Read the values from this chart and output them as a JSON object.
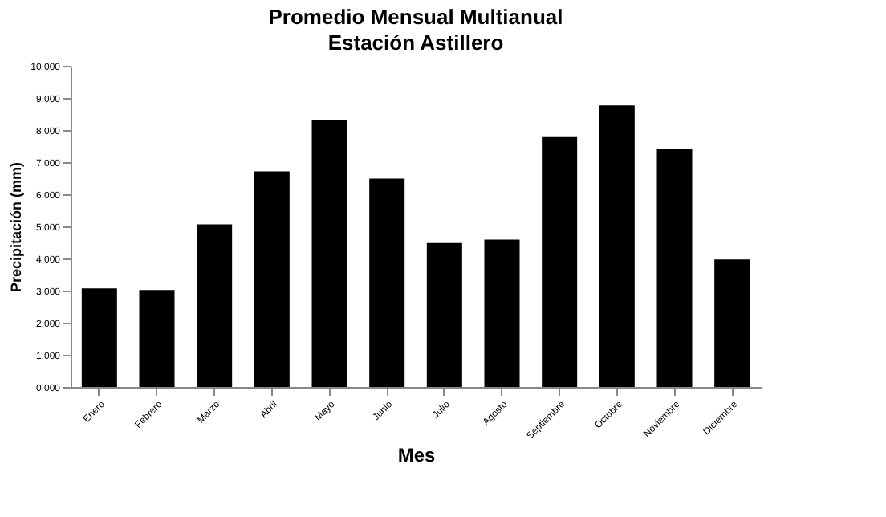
{
  "chart_data": {
    "type": "bar",
    "title": "Promedio Mensual Multianual",
    "subtitle": "Estación Astillero",
    "xlabel": "Mes",
    "ylabel": "Precipitación (mm)",
    "categories": [
      "Enero",
      "Febrero",
      "Marzo",
      "Abril",
      "Mayo",
      "Junio",
      "Julio",
      "Agosto",
      "Septiembre",
      "Octubre",
      "Noviembre",
      "Diciembre"
    ],
    "values": [
      3070,
      3020,
      5060,
      6710,
      8310,
      6490,
      4480,
      4590,
      7780,
      8770,
      7410,
      3970
    ],
    "color": "#000000",
    "ylim": [
      0,
      10000
    ],
    "yticks": [
      {
        "value": 0,
        "label": "0,000"
      },
      {
        "value": 1000,
        "label": "1,000"
      },
      {
        "value": 2000,
        "label": "2,000"
      },
      {
        "value": 3000,
        "label": "3,000"
      },
      {
        "value": 4000,
        "label": "4,000"
      },
      {
        "value": 5000,
        "label": "5,000"
      },
      {
        "value": 6000,
        "label": "6,000"
      },
      {
        "value": 7000,
        "label": "7,000"
      },
      {
        "value": 8000,
        "label": "8,000"
      },
      {
        "value": 9000,
        "label": "9,000"
      },
      {
        "value": 10000,
        "label": "10,000"
      }
    ],
    "grid": false
  }
}
